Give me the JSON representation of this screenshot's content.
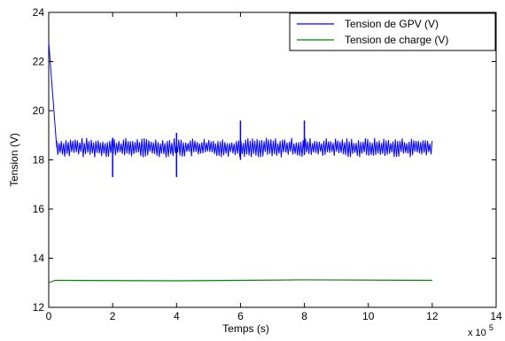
{
  "chart_data": {
    "type": "line",
    "title": "",
    "xlabel": "Temps (s)",
    "ylabel": "Tension (V)",
    "x_multiplier_label": "x 10",
    "x_multiplier_exponent": "5",
    "xlim": [
      0,
      14
    ],
    "ylim": [
      12,
      24
    ],
    "x_ticks": [
      0,
      2,
      4,
      6,
      8,
      10,
      12,
      14
    ],
    "y_ticks": [
      12,
      14,
      16,
      18,
      20,
      22,
      24
    ],
    "grid": false,
    "legend_position": "top-right",
    "series": [
      {
        "name": "Tension de GPV (V)",
        "color": "#0000ff",
        "x": [
          0,
          0.25,
          12
        ],
        "y": [
          22.8,
          18.5,
          18.5
        ],
        "noise_band": [
          18.1,
          18.9
        ],
        "spikes": [
          {
            "x": 2,
            "y_low": 17.3,
            "y_high": 18.9
          },
          {
            "x": 4,
            "y_low": 17.3,
            "y_high": 19.1
          },
          {
            "x": 6,
            "y_low": 18.0,
            "y_high": 19.6
          },
          {
            "x": 8,
            "y_low": 18.2,
            "y_high": 19.6
          }
        ]
      },
      {
        "name": "Tension de charge (V)",
        "color": "#008000",
        "x": [
          0,
          0.2,
          4,
          8,
          12
        ],
        "y": [
          13.0,
          13.1,
          13.08,
          13.12,
          13.1
        ]
      }
    ]
  }
}
